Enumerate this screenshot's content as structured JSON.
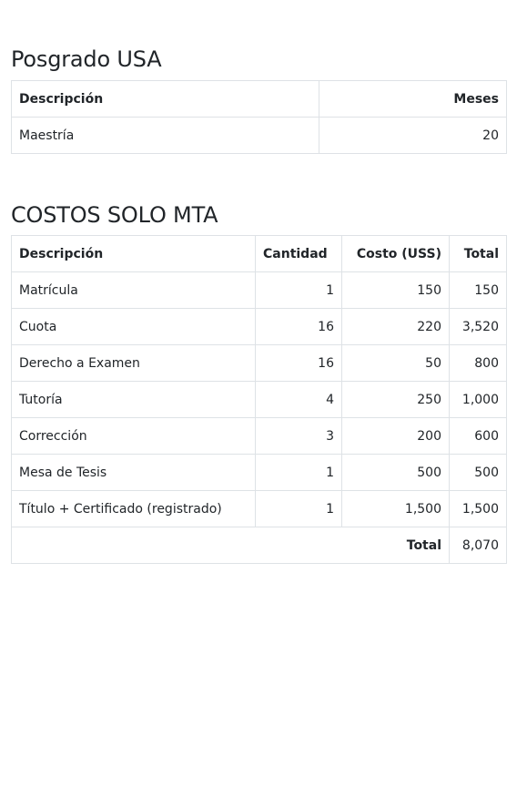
{
  "posgrado": {
    "title": "Posgrado USA",
    "headers": {
      "descripcion": "Descripción",
      "meses": "Meses"
    },
    "rows": [
      {
        "descripcion": "Maestría",
        "meses": "20"
      }
    ]
  },
  "costos": {
    "title": "COSTOS SOLO MTA",
    "headers": {
      "descripcion": "Descripción",
      "cantidad": "Cantidad",
      "costo": "Costo (USS)",
      "total": "Total"
    },
    "rows": [
      {
        "descripcion": "Matrícula",
        "cantidad": "1",
        "costo": "150",
        "total": "150"
      },
      {
        "descripcion": "Cuota",
        "cantidad": "16",
        "costo": "220",
        "total": "3,520"
      },
      {
        "descripcion": "Derecho a Examen",
        "cantidad": "16",
        "costo": "50",
        "total": "800"
      },
      {
        "descripcion": "Tutoría",
        "cantidad": "4",
        "costo": "250",
        "total": "1,000"
      },
      {
        "descripcion": "Corrección",
        "cantidad": "3",
        "costo": "200",
        "total": "600"
      },
      {
        "descripcion": "Mesa de Tesis",
        "cantidad": "1",
        "costo": "500",
        "total": "500"
      },
      {
        "descripcion": "Título + Certificado (registrado)",
        "cantidad": "1",
        "costo": "1,500",
        "total": "1,500"
      }
    ],
    "footer": {
      "label": "Total",
      "value": "8,070"
    }
  }
}
